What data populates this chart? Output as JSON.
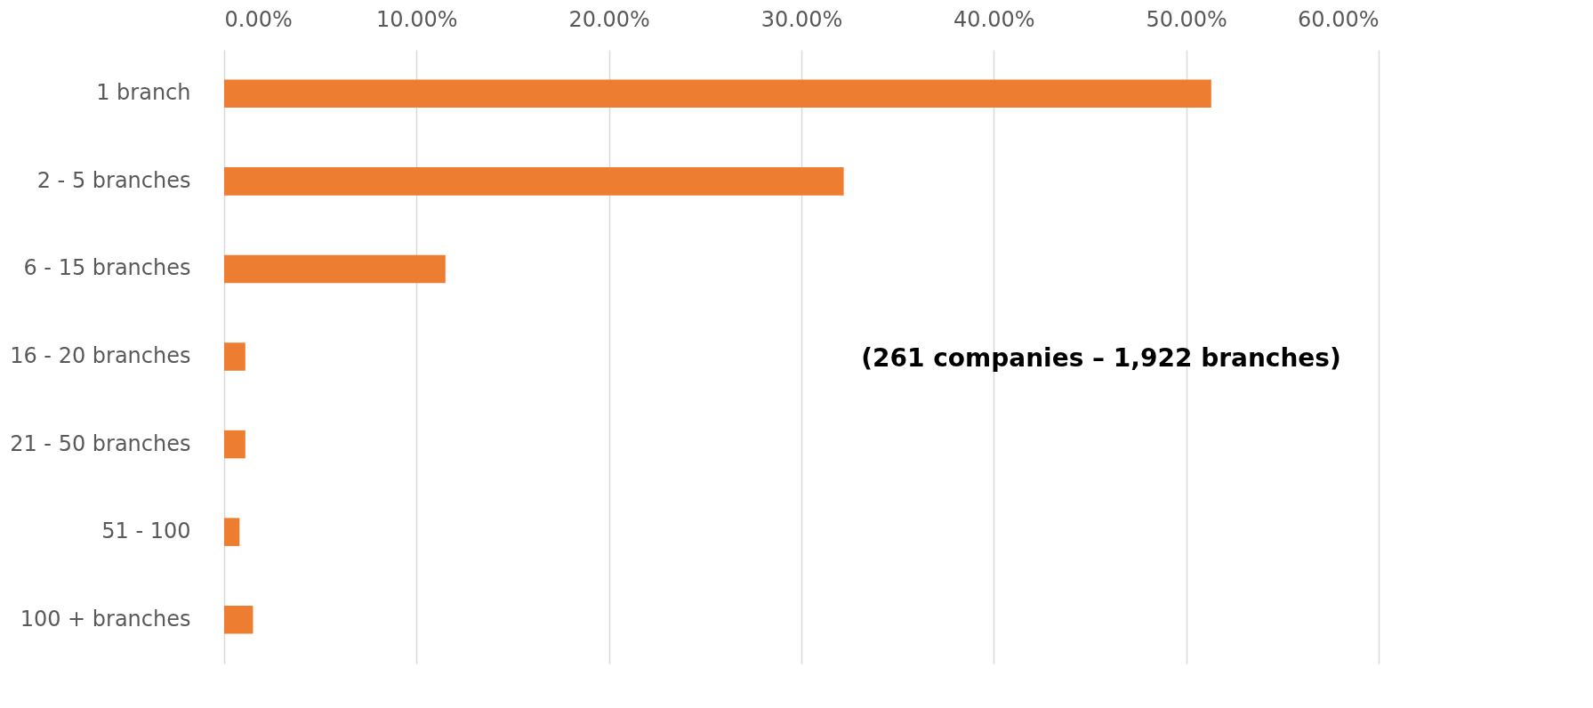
{
  "chart_data": {
    "type": "bar",
    "orientation": "horizontal",
    "categories": [
      "1 branch",
      "2 - 5 branches",
      "6 - 15 branches",
      "16 - 20 branches",
      "21 - 50 branches",
      "51 - 100",
      "100 + branches"
    ],
    "values": [
      51.3,
      32.2,
      11.5,
      1.1,
      1.1,
      0.8,
      1.5
    ],
    "color": "#ed7d31",
    "xlim": [
      0,
      60
    ],
    "xticks": [
      {
        "value": 0,
        "label": "0.00%"
      },
      {
        "value": 10,
        "label": "10.00%"
      },
      {
        "value": 20,
        "label": "20.00%"
      },
      {
        "value": 30,
        "label": "30.00%"
      },
      {
        "value": 40,
        "label": "40.00%"
      },
      {
        "value": 50,
        "label": "50.00%"
      },
      {
        "value": 60,
        "label": "60.00%"
      }
    ],
    "grid": "x",
    "annotations": [
      "(261 companies – 1,922 branches)"
    ]
  }
}
